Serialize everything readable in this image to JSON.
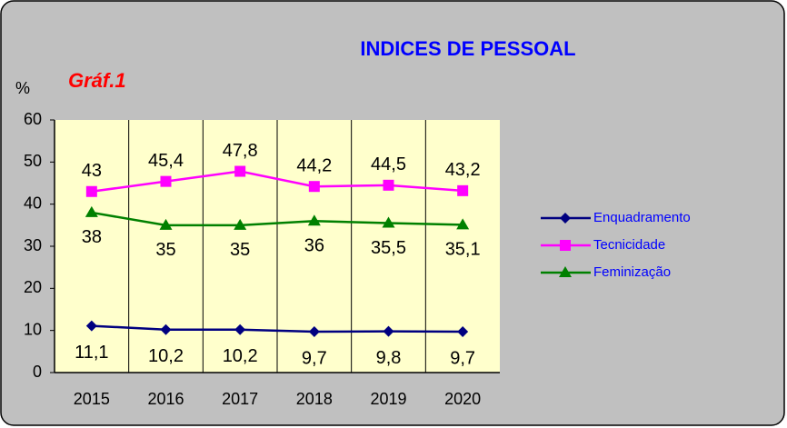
{
  "chart_data": {
    "type": "line",
    "title": "INDICES DE PESSOAL",
    "subtitle": "Gráf.1",
    "y_label": "%",
    "categories": [
      "2015",
      "2016",
      "2017",
      "2018",
      "2019",
      "2020"
    ],
    "ylim": [
      0,
      60
    ],
    "yticks": [
      0,
      10,
      20,
      30,
      40,
      50,
      60
    ],
    "legend": "right",
    "series": [
      {
        "name": "Enquadramento",
        "color": "#000080",
        "marker": "diamond",
        "values": [
          11.1,
          10.2,
          10.2,
          9.7,
          9.8,
          9.7
        ],
        "value_labels": [
          "11,1",
          "10,2",
          "10,2",
          "9,7",
          "9,8",
          "9,7"
        ]
      },
      {
        "name": "Tecnicidade",
        "color": "#ff00ff",
        "marker": "square",
        "values": [
          43,
          45.4,
          47.8,
          44.2,
          44.5,
          43.2
        ],
        "value_labels": [
          "43",
          "45,4",
          "47,8",
          "44,2",
          "44,5",
          "43,2"
        ]
      },
      {
        "name": "Feminização",
        "color": "#008000",
        "marker": "triangle",
        "values": [
          38,
          35,
          35,
          36,
          35.5,
          35.1
        ],
        "value_labels": [
          "38",
          "35",
          "35",
          "36",
          "35,5",
          "35,1"
        ]
      }
    ]
  }
}
